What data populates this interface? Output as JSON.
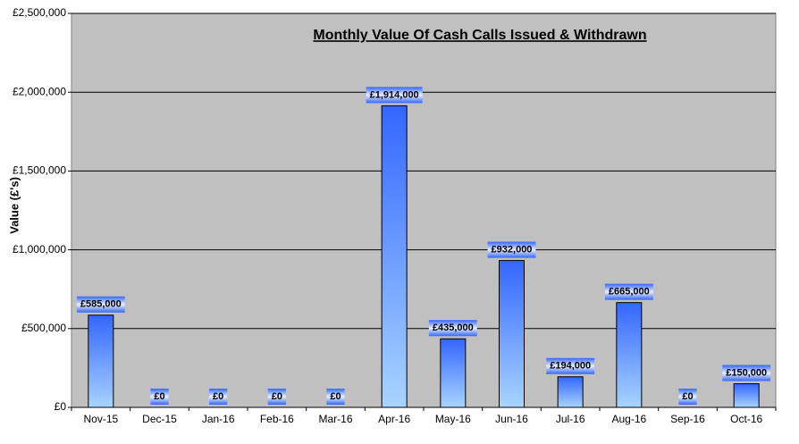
{
  "chart_data": {
    "type": "bar",
    "title": "Monthly Value Of Cash Calls Issued & Withdrawn",
    "y_label": "Value (£'s)",
    "categories": [
      "Nov-15",
      "Dec-15",
      "Jan-16",
      "Feb-16",
      "Mar-16",
      "Apr-16",
      "May-16",
      "Jun-16",
      "Jul-16",
      "Aug-16",
      "Sep-16",
      "Oct-16"
    ],
    "values": [
      585000,
      0,
      0,
      0,
      0,
      1914000,
      435000,
      932000,
      194000,
      665000,
      0,
      150000
    ],
    "value_labels": [
      "£585,000",
      "£0",
      "£0",
      "£0",
      "£0",
      "£1,914,000",
      "£435,000",
      "£932,000",
      "£194,000",
      "£665,000",
      "£0",
      "£150,000"
    ],
    "color": "#3366ff",
    "ylim": [
      0,
      2500000
    ],
    "yticks": [
      {
        "value": 0,
        "label": "£0"
      },
      {
        "value": 500000,
        "label": "£500,000"
      },
      {
        "value": 1000000,
        "label": "£1,000,000"
      },
      {
        "value": 1500000,
        "label": "£1,500,000"
      },
      {
        "value": 2000000,
        "label": "£2,000,000"
      },
      {
        "value": 2500000,
        "label": "£2,500,000"
      }
    ],
    "grid": true
  }
}
